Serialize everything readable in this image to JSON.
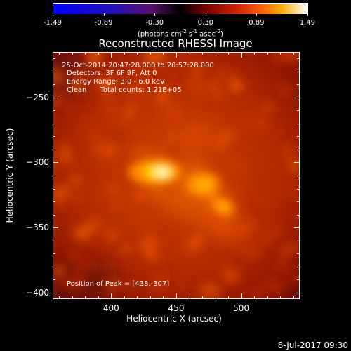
{
  "colorbar": {
    "min": -1.49,
    "max": 1.49,
    "tick_labels": [
      "-1.49",
      "-0.89",
      "-0.30",
      "0.30",
      "0.89",
      "1.49"
    ],
    "units_prefix": "(photons cm",
    "units_exp1": "-2",
    "units_mid1": " s",
    "units_exp2": "-1",
    "units_mid2": " asec",
    "units_exp3": "-2",
    "units_suffix": ")"
  },
  "plot": {
    "title": "Reconstructed RHESSI Image",
    "info_lines": [
      "25-Oct-2014 20:47:28.000 to 20:57:28.000",
      "Detectors: 3F 6F 9F, Att 0",
      "Energy Range: 3.0 - 6.0 keV",
      "Clean      Total counts: 1.21E+05"
    ],
    "peak_text": "Position of Peak = [438,-307]",
    "x_axis_title": "Heliocentric X (arcsec)",
    "y_axis_title": "Heliocentric Y (arcsec)",
    "x_tick_labels": [
      "400",
      "450",
      "500"
    ],
    "y_tick_labels": [
      "-250",
      "-300",
      "-350",
      "-400"
    ],
    "x_range": [
      355,
      545
    ],
    "y_range": [
      -405,
      -215
    ]
  },
  "timestamp": "8-Jul-2017 09:30"
}
